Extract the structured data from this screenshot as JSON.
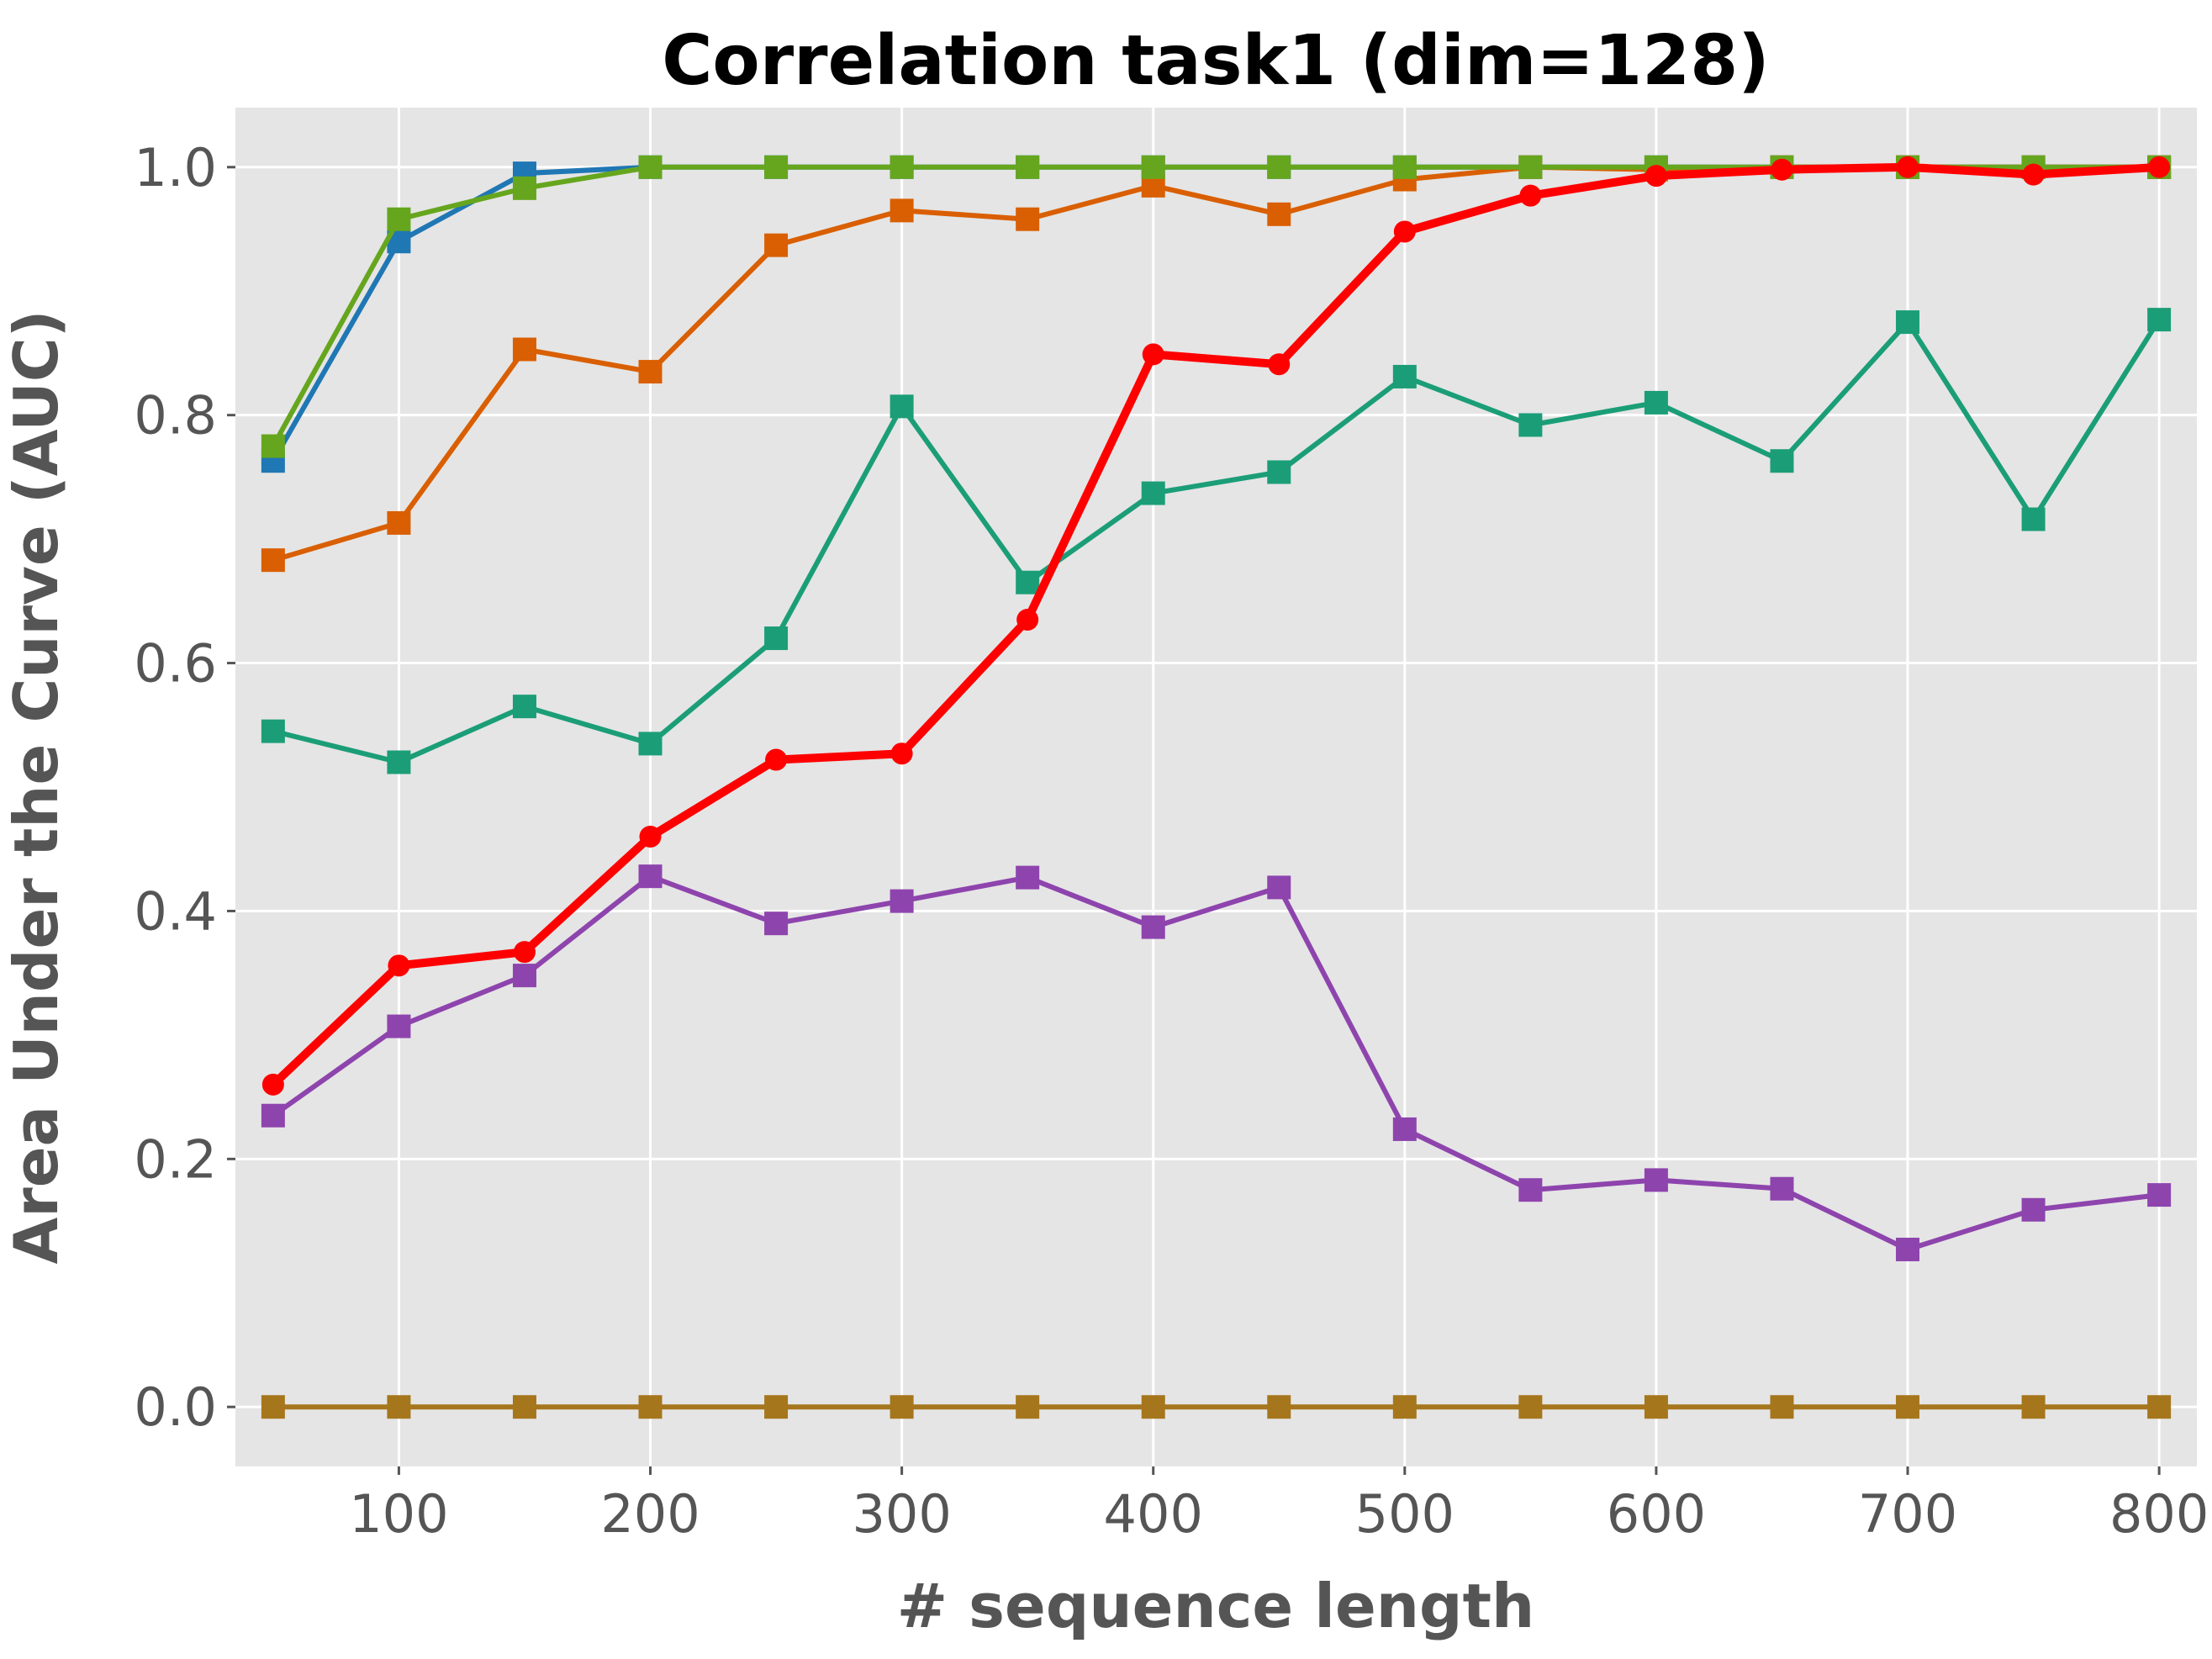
{
  "chart_data": {
    "type": "line",
    "title": "Correlation task1 (dim=128)",
    "xlabel": "# sequence length",
    "ylabel": "Area Under the Curve (AUC)",
    "xlim": [
      35,
      815
    ],
    "ylim": [
      -0.048,
      1.048
    ],
    "x_ticks": [
      100,
      200,
      300,
      400,
      500,
      600,
      700,
      800
    ],
    "x_tick_labels": [
      "100",
      "200",
      "300",
      "400",
      "500",
      "600",
      "700",
      "800"
    ],
    "y_ticks": [
      0.0,
      0.2,
      0.4,
      0.6,
      0.8,
      1.0
    ],
    "y_tick_labels": [
      "0.0",
      "0.2",
      "0.4",
      "0.6",
      "0.8",
      "1.0"
    ],
    "grid": true,
    "background": "#e5e5e5",
    "x": [
      50,
      100,
      150,
      200,
      250,
      300,
      350,
      400,
      450,
      500,
      550,
      600,
      650,
      700,
      750,
      800
    ],
    "series": [
      {
        "color": "#1f77b4",
        "marker": "square",
        "emphasis": false,
        "values": [
          0.763,
          0.94,
          0.995,
          1.0,
          1.0,
          1.0,
          1.0,
          1.0,
          1.0,
          1.0,
          1.0,
          1.0,
          1.0,
          1.0,
          1.0,
          1.0
        ]
      },
      {
        "color": "#d95f02",
        "marker": "square",
        "emphasis": false,
        "values": [
          0.683,
          0.713,
          0.853,
          0.835,
          0.937,
          0.965,
          0.958,
          0.985,
          0.962,
          0.99,
          1.0,
          0.998,
          1.0,
          1.0,
          1.0,
          1.0
        ]
      },
      {
        "color": "#66a61e",
        "marker": "square",
        "emphasis": false,
        "values": [
          0.775,
          0.958,
          0.983,
          1.0,
          1.0,
          1.0,
          1.0,
          1.0,
          1.0,
          1.0,
          1.0,
          1.0,
          1.0,
          1.0,
          1.0,
          1.0
        ]
      },
      {
        "color": "#1b9e77",
        "marker": "square",
        "emphasis": false,
        "values": [
          0.545,
          0.52,
          0.565,
          0.535,
          0.62,
          0.807,
          0.665,
          0.737,
          0.754,
          0.831,
          0.792,
          0.81,
          0.763,
          0.875,
          0.716,
          0.877
        ]
      },
      {
        "color": "#8e44ad",
        "marker": "square",
        "emphasis": false,
        "values": [
          0.235,
          0.307,
          0.348,
          0.428,
          0.39,
          0.408,
          0.427,
          0.387,
          0.419,
          0.224,
          0.175,
          0.183,
          0.176,
          0.127,
          0.159,
          0.171
        ]
      },
      {
        "color": "#a6761d",
        "marker": "square",
        "emphasis": false,
        "values": [
          0,
          0,
          0,
          0,
          0,
          0,
          0,
          0,
          0,
          0,
          0,
          0,
          0,
          0,
          0,
          0
        ]
      },
      {
        "color": "#ff0000",
        "marker": "circle",
        "emphasis": true,
        "values": [
          0.26,
          0.356,
          0.367,
          0.46,
          0.522,
          0.527,
          0.635,
          0.849,
          0.841,
          0.948,
          0.977,
          0.993,
          0.998,
          1.0,
          0.994,
          1.0
        ]
      }
    ]
  }
}
